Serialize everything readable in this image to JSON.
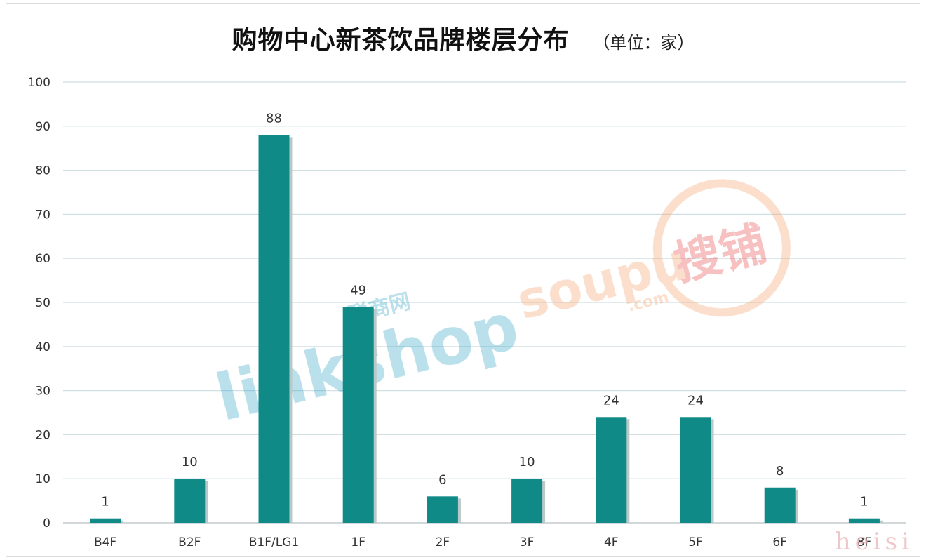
{
  "title": "购物中心新茶饮品牌楼层分布",
  "unit": "（单位：家）",
  "colors": {
    "bar": "#0f8a87",
    "bar_shadow": "#b9c9c8",
    "grid": "#cfdfe4",
    "axis": "#c4ccce"
  },
  "watermarks": {
    "linkshop_cn": "联商网",
    "linkshop": "linkshop",
    "soupu": "soupu",
    "soupu_cn": "搜铺",
    "soupu_com": ".com",
    "corner": "heisi"
  },
  "chart_data": {
    "type": "bar",
    "categories": [
      "B4F",
      "B2F",
      "B1F/LG1",
      "1F",
      "2F",
      "3F",
      "4F",
      "5F",
      "6F",
      "8F"
    ],
    "values": [
      1,
      10,
      88,
      49,
      6,
      10,
      24,
      24,
      8,
      1
    ],
    "ylim": [
      0,
      100
    ],
    "yticks": [
      0,
      10,
      20,
      30,
      40,
      50,
      60,
      70,
      80,
      90,
      100
    ],
    "grid": true,
    "data_labels": true
  }
}
